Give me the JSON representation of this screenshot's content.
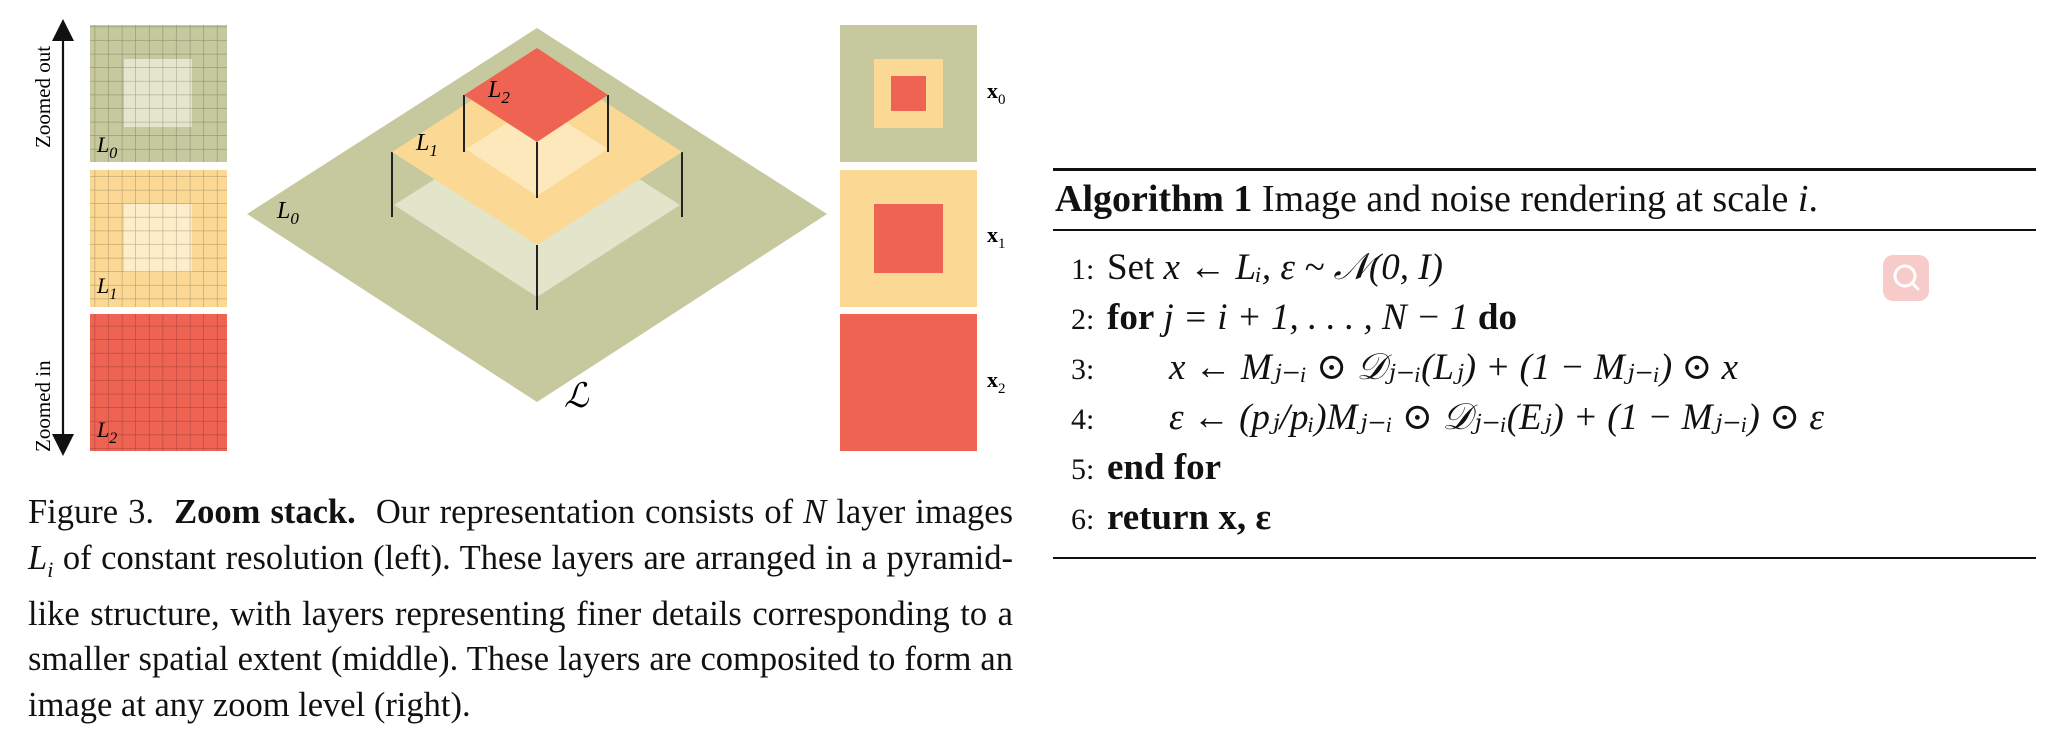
{
  "figure": {
    "left_axis": {
      "top_label": "Zoomed out",
      "bottom_label": "Zoomed in"
    },
    "layers_left": [
      {
        "label_main": "L",
        "label_sub": "0",
        "color": "#c5c99d",
        "inner_color": "#e3e6cc"
      },
      {
        "label_main": "L",
        "label_sub": "1",
        "color": "#fbd995",
        "inner_color": "#fdedc8"
      },
      {
        "label_main": "L",
        "label_sub": "2",
        "color": "#ef6353",
        "inner_color": "#ef6353"
      }
    ],
    "pyramid": {
      "l0_main": "L",
      "l0_sub": "0",
      "l1_main": "L",
      "l1_sub": "1",
      "l2_main": "L",
      "l2_sub": "2",
      "script_label": "ℒ"
    },
    "composites_right": [
      {
        "label_main": "x",
        "label_sub": "0"
      },
      {
        "label_main": "x",
        "label_sub": "1"
      },
      {
        "label_main": "x",
        "label_sub": "2"
      }
    ]
  },
  "caption": {
    "prefix": "Figure 3.",
    "title": "Zoom stack.",
    "t1": "Our representation consists of",
    "var_n": "N",
    "t2": "layer images",
    "var_li": "L",
    "var_li_sub": "i",
    "t3": "of constant resolution (left). These layers are arranged in a pyramid-like structure, with layers representing finer details corresponding to a smaller spatial extent (middle). These layers are composited to form an image at any zoom level (right)."
  },
  "algorithm": {
    "title_bold": "Algorithm 1",
    "title_text": "Image and noise rendering at scale",
    "title_var": "i",
    "title_end": ".",
    "lines": [
      {
        "num": "1:",
        "kw_pre": "Set",
        "body": "x ← Lᵢ, ε ~ 𝒩(0, I)"
      },
      {
        "num": "2:",
        "kw_pre": "for",
        "body": "j = i + 1, . . . , N − 1",
        "kw_post": "do"
      },
      {
        "num": "3:",
        "body": "x ← Mⱼ₋ᵢ ⊙ 𝒟ⱼ₋ᵢ(Lⱼ) + (1 − Mⱼ₋ᵢ) ⊙ x"
      },
      {
        "num": "4:",
        "body": "ε ← (pⱼ/pᵢ)Mⱼ₋ᵢ ⊙ 𝒟ⱼ₋ᵢ(Eⱼ) + (1 − Mⱼ₋ᵢ) ⊙ ε"
      },
      {
        "num": "5:",
        "kw_pre": "end for"
      },
      {
        "num": "6:",
        "kw_pre": "return",
        "body": "x, ε"
      }
    ]
  },
  "colors": {
    "olive": "#c5c99d",
    "peach": "#fbd995",
    "coral": "#ef6353"
  }
}
